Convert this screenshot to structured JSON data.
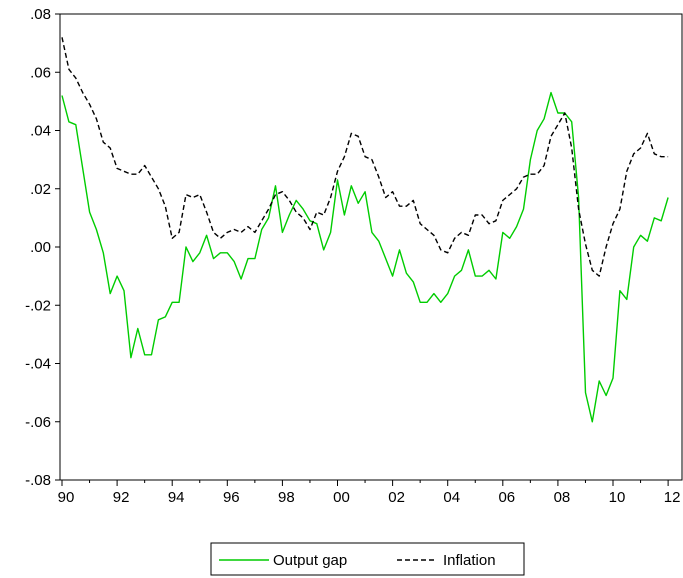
{
  "chart_data": {
    "type": "line",
    "title": "",
    "xlabel": "",
    "ylabel": "",
    "xlim": [
      1990.0,
      2012.25
    ],
    "ylim": [
      -0.08,
      0.08
    ],
    "y_ticks": [
      ".08",
      ".06",
      ".04",
      ".02",
      ".00",
      "-.02",
      "-.04",
      "-.06",
      "-.08"
    ],
    "y_tick_values": [
      0.08,
      0.06,
      0.04,
      0.02,
      0.0,
      -0.02,
      -0.04,
      -0.06,
      -0.08
    ],
    "x_ticks": [
      "90",
      "92",
      "94",
      "96",
      "98",
      "00",
      "02",
      "04",
      "06",
      "08",
      "10",
      "12"
    ],
    "x_tick_values": [
      1990,
      1992,
      1994,
      1996,
      1998,
      2000,
      2002,
      2004,
      2006,
      2008,
      2010,
      2012
    ],
    "grid": false,
    "legend_position": "bottom-center",
    "series": [
      {
        "name": "Output gap",
        "color": "#00cc00",
        "dash": "solid",
        "x": [
          1990.0,
          1990.25,
          1990.5,
          1990.75,
          1991.0,
          1991.25,
          1991.5,
          1991.75,
          1992.0,
          1992.25,
          1992.5,
          1992.75,
          1993.0,
          1993.25,
          1993.5,
          1993.75,
          1994.0,
          1994.25,
          1994.5,
          1994.75,
          1995.0,
          1995.25,
          1995.5,
          1995.75,
          1996.0,
          1996.25,
          1996.5,
          1996.75,
          1997.0,
          1997.25,
          1997.5,
          1997.75,
          1998.0,
          1998.25,
          1998.5,
          1998.75,
          1999.0,
          1999.25,
          1999.5,
          1999.75,
          2000.0,
          2000.25,
          2000.5,
          2000.75,
          2001.0,
          2001.25,
          2001.5,
          2001.75,
          2002.0,
          2002.25,
          2002.5,
          2002.75,
          2003.0,
          2003.25,
          2003.5,
          2003.75,
          2004.0,
          2004.25,
          2004.5,
          2004.75,
          2005.0,
          2005.25,
          2005.5,
          2005.75,
          2006.0,
          2006.25,
          2006.5,
          2006.75,
          2007.0,
          2007.25,
          2007.5,
          2007.75,
          2008.0,
          2008.25,
          2008.5,
          2008.75,
          2009.0,
          2009.25,
          2009.5,
          2009.75,
          2010.0,
          2010.25,
          2010.5,
          2010.75,
          2011.0,
          2011.25,
          2011.5,
          2011.75,
          2012.0
        ],
        "values": [
          0.052,
          0.043,
          0.042,
          0.027,
          0.012,
          0.006,
          -0.002,
          -0.016,
          -0.01,
          -0.015,
          -0.038,
          -0.028,
          -0.037,
          -0.037,
          -0.025,
          -0.024,
          -0.019,
          -0.019,
          0.0,
          -0.005,
          -0.002,
          0.004,
          -0.004,
          -0.002,
          -0.002,
          -0.005,
          -0.011,
          -0.004,
          -0.004,
          0.006,
          0.01,
          0.021,
          0.005,
          0.011,
          0.016,
          0.013,
          0.009,
          0.008,
          -0.001,
          0.005,
          0.023,
          0.011,
          0.021,
          0.015,
          0.019,
          0.005,
          0.002,
          -0.004,
          -0.01,
          -0.001,
          -0.009,
          -0.012,
          -0.019,
          -0.019,
          -0.016,
          -0.019,
          -0.016,
          -0.01,
          -0.008,
          -0.001,
          -0.01,
          -0.01,
          -0.008,
          -0.011,
          0.005,
          0.003,
          0.007,
          0.013,
          0.03,
          0.04,
          0.044,
          0.053,
          0.046,
          0.046,
          0.043,
          0.017,
          -0.05,
          -0.06,
          -0.046,
          -0.051,
          -0.045,
          -0.015,
          -0.018,
          0.0,
          0.004,
          0.002,
          0.01,
          0.009,
          0.017
        ]
      },
      {
        "name": "Inflation",
        "color": "#000000",
        "dash": "dashed",
        "x": [
          1990.0,
          1990.25,
          1990.5,
          1990.75,
          1991.0,
          1991.25,
          1991.5,
          1991.75,
          1992.0,
          1992.25,
          1992.5,
          1992.75,
          1993.0,
          1993.25,
          1993.5,
          1993.75,
          1994.0,
          1994.25,
          1994.5,
          1994.75,
          1995.0,
          1995.25,
          1995.5,
          1995.75,
          1996.0,
          1996.25,
          1996.5,
          1996.75,
          1997.0,
          1997.25,
          1997.5,
          1997.75,
          1998.0,
          1998.25,
          1998.5,
          1998.75,
          1999.0,
          1999.25,
          1999.5,
          1999.75,
          2000.0,
          2000.25,
          2000.5,
          2000.75,
          2001.0,
          2001.25,
          2001.5,
          2001.75,
          2002.0,
          2002.25,
          2002.5,
          2002.75,
          2003.0,
          2003.25,
          2003.5,
          2003.75,
          2004.0,
          2004.25,
          2004.5,
          2004.75,
          2005.0,
          2005.25,
          2005.5,
          2005.75,
          2006.0,
          2006.25,
          2006.5,
          2006.75,
          2007.0,
          2007.25,
          2007.5,
          2007.75,
          2008.0,
          2008.25,
          2008.5,
          2008.75,
          2009.0,
          2009.25,
          2009.5,
          2009.75,
          2010.0,
          2010.25,
          2010.5,
          2010.75,
          2011.0,
          2011.25,
          2011.5,
          2011.75,
          2012.0
        ],
        "values": [
          0.072,
          0.061,
          0.058,
          0.053,
          0.049,
          0.044,
          0.036,
          0.034,
          0.027,
          0.026,
          0.025,
          0.025,
          0.028,
          0.024,
          0.02,
          0.014,
          0.003,
          0.005,
          0.018,
          0.017,
          0.018,
          0.012,
          0.005,
          0.003,
          0.005,
          0.006,
          0.005,
          0.007,
          0.005,
          0.009,
          0.013,
          0.018,
          0.019,
          0.016,
          0.012,
          0.01,
          0.006,
          0.012,
          0.011,
          0.017,
          0.026,
          0.031,
          0.039,
          0.038,
          0.031,
          0.03,
          0.024,
          0.017,
          0.019,
          0.014,
          0.014,
          0.016,
          0.008,
          0.006,
          0.004,
          -0.001,
          -0.002,
          0.003,
          0.005,
          0.004,
          0.011,
          0.011,
          0.008,
          0.009,
          0.016,
          0.018,
          0.02,
          0.024,
          0.025,
          0.025,
          0.028,
          0.038,
          0.042,
          0.046,
          0.034,
          0.013,
          0.001,
          -0.008,
          -0.01,
          0.0,
          0.008,
          0.013,
          0.026,
          0.032,
          0.034,
          0.039,
          0.032,
          0.031,
          0.031
        ]
      }
    ]
  }
}
